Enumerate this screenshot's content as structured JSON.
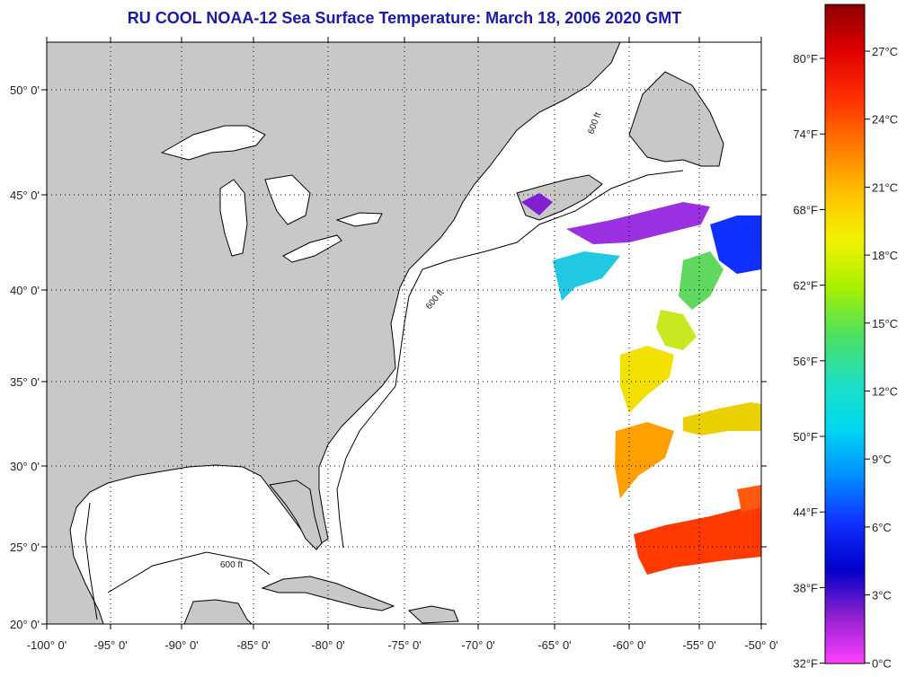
{
  "title": "RU COOL  NOAA-12  Sea Surface Temperature:  March 18, 2006 2020 GMT",
  "map": {
    "lon_ticks": [
      "-100° 0'",
      "-95° 0'",
      "-90° 0'",
      "-85° 0'",
      "-80° 0'",
      "-75° 0'",
      "-70° 0'",
      "-65° 0'",
      "-60° 0'",
      "-55° 0'",
      "-50° 0'"
    ],
    "lat_ticks": [
      "50° 0'",
      "45° 0'",
      "40° 0'",
      "35° 0'",
      "30° 0'",
      "25° 0'",
      "20° 0'"
    ],
    "contour_label": "600 ft",
    "land_color": "#c8c8c8",
    "ocean_color": "#ffffff"
  },
  "colorbar": {
    "fahrenheit_labels": [
      "80°F",
      "74°F",
      "68°F",
      "62°F",
      "56°F",
      "50°F",
      "44°F",
      "38°F",
      "32°F"
    ],
    "celsius_labels": [
      "27°C",
      "24°C",
      "21°C",
      "18°C",
      "15°C",
      "12°C",
      "9°C",
      "6°C",
      "3°C",
      "0°C"
    ],
    "colors_top_to_bottom": [
      "#8b0000",
      "#e00000",
      "#ff3000",
      "#ff7a00",
      "#ffc000",
      "#f2f200",
      "#a8f000",
      "#50e060",
      "#20e0c0",
      "#00d8f0",
      "#0090ff",
      "#1030ff",
      "#0000c8",
      "#9020d0",
      "#ff40ff"
    ]
  }
}
